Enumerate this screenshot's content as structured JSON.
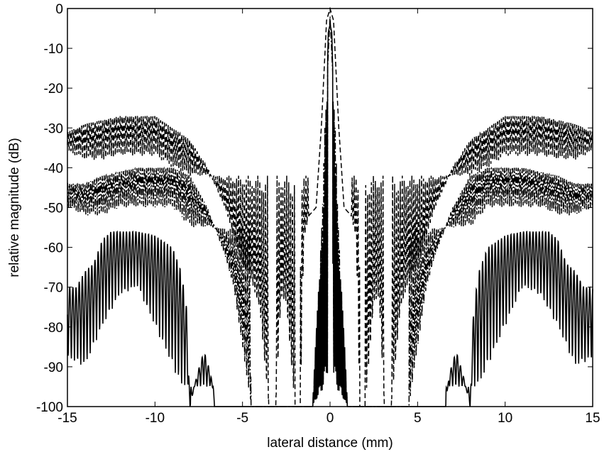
{
  "chart_data": {
    "type": "line",
    "title": "",
    "xlabel": "lateral distance (mm)",
    "ylabel": "relative magnitude (dB)",
    "xlim": [
      -15,
      15
    ],
    "ylim": [
      -100,
      0
    ],
    "xticks": [
      -15,
      -10,
      -5,
      0,
      5,
      10,
      15
    ],
    "yticks": [
      0,
      -10,
      -20,
      -30,
      -40,
      -50,
      -60,
      -70,
      -80,
      -90,
      -100
    ],
    "grid": false,
    "legend": "none",
    "series": [
      {
        "style": "dashed",
        "color": "#000000",
        "envelope_upper": [
          [
            -15,
            -31
          ],
          [
            -14,
            -29
          ],
          [
            -13,
            -28
          ],
          [
            -12,
            -27
          ],
          [
            -11,
            -27
          ],
          [
            -10,
            -27
          ],
          [
            -9,
            -30
          ],
          [
            -8,
            -33
          ],
          [
            -7,
            -40
          ],
          [
            -6,
            -50
          ],
          [
            -5,
            -64
          ],
          [
            -4.5,
            -68
          ],
          [
            -4,
            -76
          ],
          [
            -3.5,
            -100
          ],
          [
            -3.1,
            -100
          ],
          [
            -2.8,
            -72
          ],
          [
            -2.5,
            -74
          ],
          [
            -2,
            -100
          ],
          [
            -1.7,
            -100
          ],
          [
            -1.5,
            -58
          ],
          [
            -1.2,
            -52
          ],
          [
            -0.8,
            -50
          ],
          [
            -0.5,
            -30
          ],
          [
            -0.2,
            -3
          ],
          [
            0,
            0
          ],
          [
            0.2,
            -3
          ],
          [
            0.5,
            -30
          ],
          [
            0.8,
            -50
          ],
          [
            1.2,
            -52
          ],
          [
            1.5,
            -58
          ],
          [
            1.7,
            -100
          ],
          [
            2,
            -100
          ],
          [
            2.5,
            -74
          ],
          [
            2.8,
            -72
          ],
          [
            3.1,
            -100
          ],
          [
            3.5,
            -100
          ],
          [
            4,
            -76
          ],
          [
            4.5,
            -68
          ],
          [
            5,
            -64
          ],
          [
            6,
            -50
          ],
          [
            7,
            -40
          ],
          [
            8,
            -33
          ],
          [
            9,
            -30
          ],
          [
            10,
            -27
          ],
          [
            11,
            -27
          ],
          [
            12,
            -27
          ],
          [
            13,
            -28
          ],
          [
            14,
            -29
          ],
          [
            15,
            -31
          ]
        ],
        "envelope_lower": [
          [
            -15,
            -36
          ],
          [
            -14,
            -38
          ],
          [
            -13,
            -38
          ],
          [
            -12,
            -37
          ],
          [
            -11,
            -37
          ],
          [
            -10,
            -37
          ],
          [
            -9,
            -40
          ],
          [
            -8,
            -42
          ]
        ]
      },
      {
        "style": "dash-dot",
        "color": "#000000",
        "envelope_upper": [
          [
            -15,
            -44
          ],
          [
            -14,
            -44
          ],
          [
            -13,
            -42
          ],
          [
            -12,
            -41
          ],
          [
            -11,
            -40
          ],
          [
            -10,
            -40
          ],
          [
            -9,
            -40
          ],
          [
            -8,
            -42
          ],
          [
            -7,
            -50
          ],
          [
            -6,
            -62
          ],
          [
            -5.5,
            -70
          ],
          [
            -5,
            -85
          ],
          [
            -4.5,
            -100
          ],
          [
            -1,
            -100
          ],
          [
            -0.6,
            -68
          ],
          [
            -0.3,
            -30
          ],
          [
            0,
            -2
          ],
          [
            0.3,
            -30
          ],
          [
            0.6,
            -68
          ],
          [
            1,
            -100
          ],
          [
            4.5,
            -100
          ],
          [
            5,
            -85
          ],
          [
            5.5,
            -70
          ],
          [
            6,
            -62
          ],
          [
            7,
            -50
          ],
          [
            8,
            -42
          ],
          [
            9,
            -40
          ],
          [
            10,
            -40
          ],
          [
            11,
            -40
          ],
          [
            12,
            -41
          ],
          [
            13,
            -42
          ],
          [
            14,
            -44
          ],
          [
            15,
            -44
          ]
        ],
        "envelope_lower": [
          [
            -15,
            -50
          ],
          [
            -14,
            -52
          ],
          [
            -13,
            -52
          ],
          [
            -12,
            -50
          ],
          [
            -11,
            -50
          ],
          [
            -10,
            -50
          ],
          [
            -9,
            -50
          ],
          [
            -8,
            -55
          ]
        ]
      },
      {
        "style": "solid",
        "color": "#000000",
        "envelope_upper": [
          [
            -15,
            -70
          ],
          [
            -14.5,
            -70
          ],
          [
            -14,
            -66
          ],
          [
            -13.5,
            -64
          ],
          [
            -13,
            -58
          ],
          [
            -12.5,
            -56
          ],
          [
            -12,
            -56
          ],
          [
            -11,
            -56
          ],
          [
            -10,
            -57
          ],
          [
            -9,
            -60
          ],
          [
            -8.5,
            -66
          ],
          [
            -8.2,
            -75
          ],
          [
            -8,
            -100
          ],
          [
            -7.6,
            -92
          ],
          [
            -7.2,
            -86
          ],
          [
            -6.8,
            -92
          ],
          [
            -6.6,
            -100
          ],
          [
            -1,
            -100
          ],
          [
            -0.7,
            -72
          ],
          [
            -0.5,
            -65
          ],
          [
            -0.3,
            -42
          ],
          [
            -0.1,
            -6
          ],
          [
            0,
            -4
          ],
          [
            0.1,
            -6
          ],
          [
            0.3,
            -42
          ],
          [
            0.5,
            -65
          ],
          [
            0.7,
            -72
          ],
          [
            1,
            -100
          ],
          [
            6.6,
            -100
          ],
          [
            6.8,
            -92
          ],
          [
            7.2,
            -86
          ],
          [
            7.6,
            -92
          ],
          [
            8,
            -100
          ],
          [
            8.2,
            -75
          ],
          [
            8.5,
            -66
          ],
          [
            9,
            -60
          ],
          [
            10,
            -57
          ],
          [
            11,
            -56
          ],
          [
            12,
            -56
          ],
          [
            12.5,
            -56
          ],
          [
            13,
            -58
          ],
          [
            13.5,
            -64
          ],
          [
            14,
            -66
          ],
          [
            14.5,
            -70
          ],
          [
            15,
            -70
          ]
        ],
        "envelope_lower": [
          [
            -15,
            -88
          ],
          [
            -14,
            -90
          ],
          [
            -13,
            -80
          ],
          [
            -12,
            -72
          ],
          [
            -11,
            -70
          ],
          [
            -10,
            -80
          ],
          [
            -9,
            -90
          ],
          [
            -8.5,
            -95
          ]
        ]
      }
    ]
  }
}
